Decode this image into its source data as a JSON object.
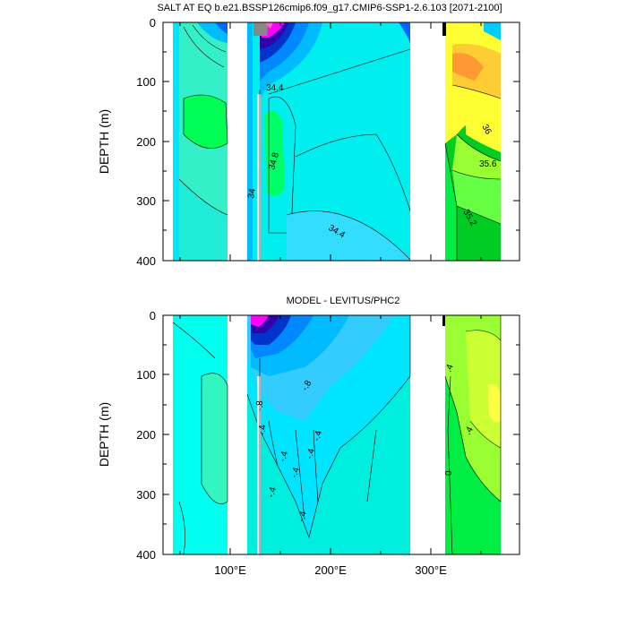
{
  "chart_data": [
    {
      "type": "heatmap",
      "title": "SALT AT EQ b.e21.BSSP126cmip6.f09_g17.CMIP6-SSP1-2.6.103 [2071-2100]",
      "ylabel": "DEPTH (m)",
      "x_ticks": [
        "100°E",
        "200°E",
        "300°E"
      ],
      "y_ticks": [
        "0",
        "100",
        "200",
        "300",
        "400"
      ],
      "xlim": [
        25,
        390
      ],
      "ylim": [
        400,
        0
      ],
      "contour_labels": [
        "34.4",
        "34.8",
        "34",
        "34.4",
        "36",
        "35.6",
        "35.2"
      ],
      "colors": [
        "#00e5ff",
        "#33ff99",
        "#00ff44",
        "#00bbff",
        "#0088ff",
        "#0033cc",
        "#3300aa",
        "#ff00ff",
        "#ff66cc",
        "#888888",
        "#ffff00",
        "#ffcc33",
        "#ff9933",
        "#99ff33",
        "#66ff66",
        "#00cc00",
        "#33ccff"
      ]
    },
    {
      "type": "heatmap",
      "title": "MODEL - LEVITUS/PHC2",
      "ylabel": "DEPTH (m)",
      "x_ticks": [
        "100°E",
        "200°E",
        "300°E"
      ],
      "y_ticks": [
        "0",
        "100",
        "200",
        "300",
        "400"
      ],
      "xlim": [
        25,
        390
      ],
      "ylim": [
        400,
        0
      ],
      "contour_labels": [
        "-.8",
        "-.8",
        "-.4",
        "-.4",
        "-.4",
        "-.4",
        "-.4",
        "-.4",
        "-.4",
        ".4",
        ".4",
        "0"
      ],
      "colors": [
        "#00ffee",
        "#00e5ff",
        "#33ff99",
        "#00bbff",
        "#0088ff",
        "#0033cc",
        "#3300aa",
        "#ff00ff",
        "#99ff33",
        "#ccff33",
        "#ffff44",
        "#00ff44",
        "#33dd33"
      ]
    }
  ]
}
